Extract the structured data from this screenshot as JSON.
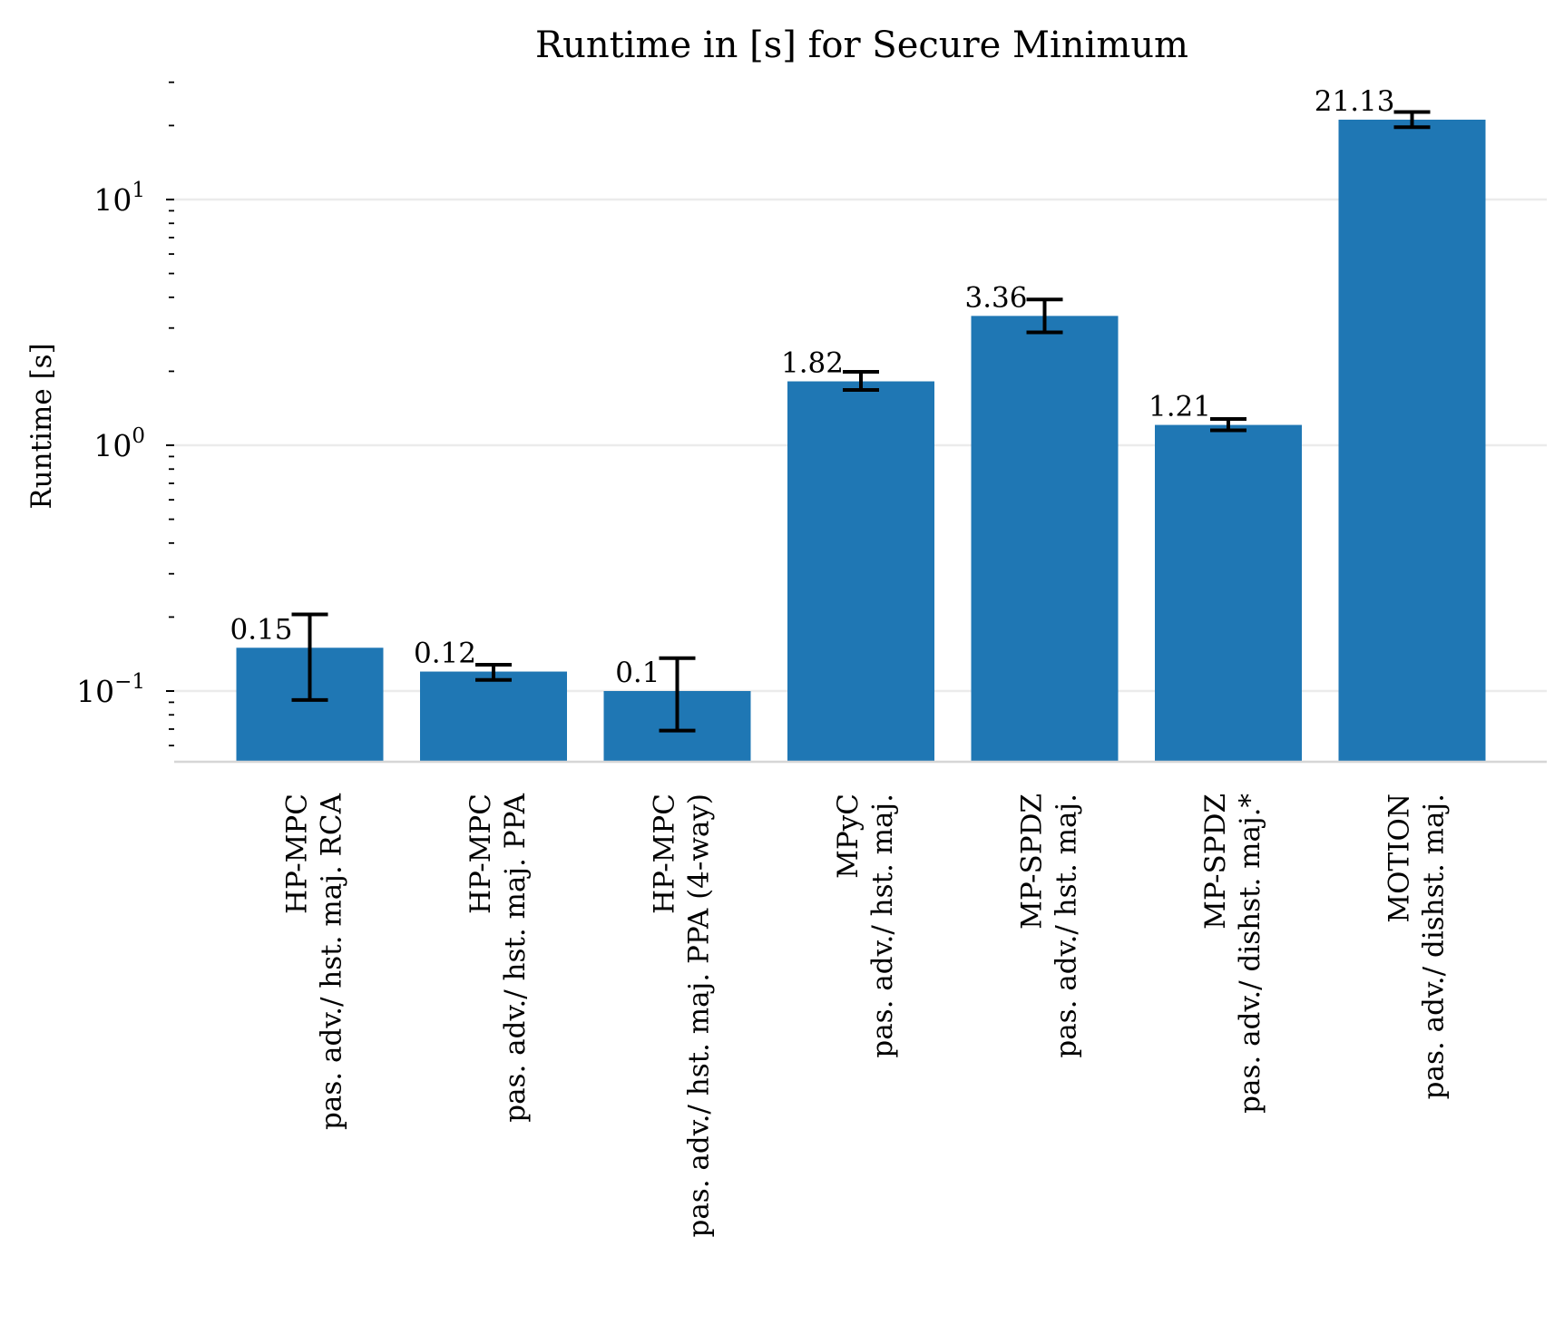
{
  "chart_data": {
    "type": "bar",
    "title": "Runtime in [s] for Secure Minimum",
    "xlabel": "",
    "ylabel": "Runtime [s]",
    "yscale": "log",
    "ylim": [
      0.055,
      30
    ],
    "grid": "y-major",
    "bar_color": "#1f77b4",
    "y_major_ticks": [
      {
        "value": 0.1,
        "base": "10",
        "exp": "−1"
      },
      {
        "value": 1,
        "base": "10",
        "exp": "0"
      },
      {
        "value": 10,
        "base": "10",
        "exp": "1"
      }
    ],
    "y_minor_ticks": [
      0.06,
      0.07,
      0.08,
      0.09,
      0.2,
      0.3,
      0.4,
      0.5,
      0.6,
      0.7,
      0.8,
      0.9,
      2,
      3,
      4,
      5,
      6,
      7,
      8,
      9,
      20,
      30
    ],
    "categories": [
      {
        "line1": "HP-MPC",
        "line2": "pas. adv./ hst. maj. RCA"
      },
      {
        "line1": "HP-MPC",
        "line2": "pas. adv./ hst. maj. PPA"
      },
      {
        "line1": "HP-MPC",
        "line2": "pas. adv./ hst. maj. PPA (4-way)"
      },
      {
        "line1": "MPyC",
        "line2": "pas. adv./ hst. maj."
      },
      {
        "line1": "MP-SPDZ",
        "line2": "pas. adv./ hst. maj."
      },
      {
        "line1": "MP-SPDZ",
        "line2": "pas. adv./ dishst. maj.*"
      },
      {
        "line1": "MOTION",
        "line2": "pas. adv./ dishst. maj."
      }
    ],
    "values": [
      0.15,
      0.12,
      0.1,
      1.82,
      3.36,
      1.21,
      21.13
    ],
    "value_labels": [
      "0.15",
      "0.12",
      "0.1",
      "1.82",
      "3.36",
      "1.21",
      "21.13"
    ],
    "error_bars": [
      {
        "low": 0.092,
        "high": 0.205
      },
      {
        "low": 0.111,
        "high": 0.128
      },
      {
        "low": 0.069,
        "high": 0.136
      },
      {
        "low": 1.68,
        "high": 1.99
      },
      {
        "low": 2.88,
        "high": 3.92
      },
      {
        "low": 1.15,
        "high": 1.28
      },
      {
        "low": 19.7,
        "high": 22.7
      }
    ]
  }
}
